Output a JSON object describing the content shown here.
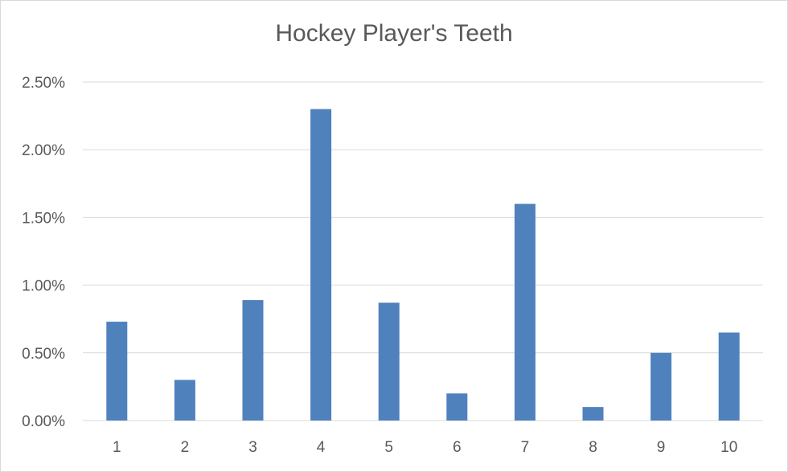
{
  "chart_data": {
    "type": "bar",
    "title": "Hockey Player's Teeth",
    "xlabel": "",
    "ylabel": "",
    "categories": [
      "1",
      "2",
      "3",
      "4",
      "5",
      "6",
      "7",
      "8",
      "9",
      "10"
    ],
    "values": [
      0.0073,
      0.003,
      0.0089,
      0.023,
      0.0087,
      0.002,
      0.016,
      0.001,
      0.005,
      0.0065
    ],
    "ylim": [
      0,
      0.025
    ],
    "yticks": [
      "0.00%",
      "0.50%",
      "1.00%",
      "1.50%",
      "2.00%",
      "2.50%"
    ],
    "grid": true,
    "legend": "none",
    "bar_color": "#4f81bd",
    "grid_color": "#d9d9d9"
  }
}
